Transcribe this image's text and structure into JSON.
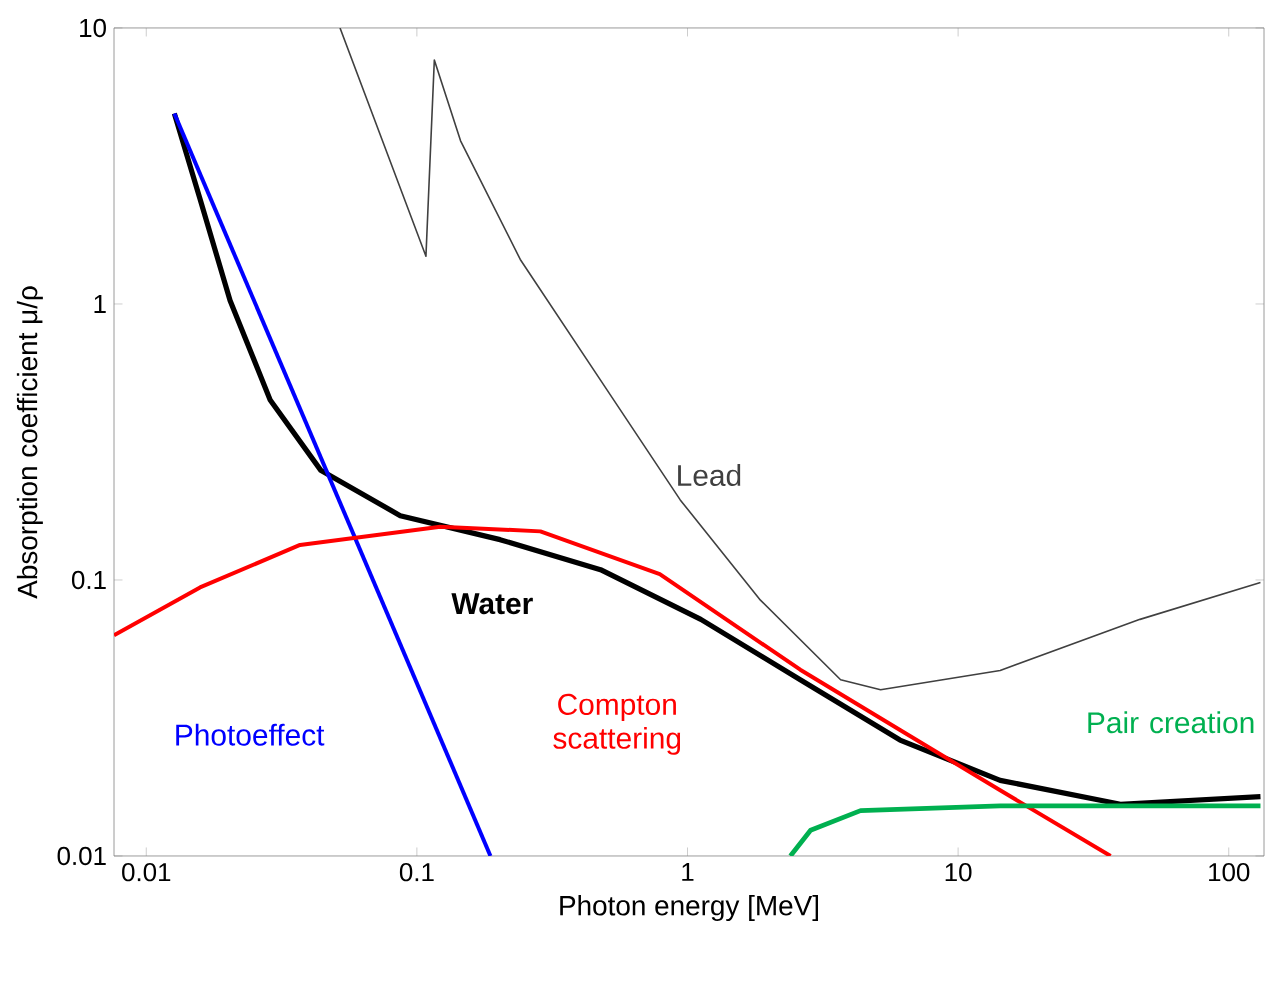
{
  "chart_data": {
    "type": "line",
    "xlabel": "Photon energy [MeV]",
    "ylabel": "Absorption coefficient μ/ρ",
    "log": "xy",
    "xlim": [
      0.0076,
      135
    ],
    "ylim": [
      0.01,
      10
    ],
    "xticks": [
      0.01,
      0.1,
      1,
      10,
      100
    ],
    "yticks": [
      0.01,
      0.1,
      1,
      10
    ],
    "grid": false,
    "legend": false,
    "marker": "none",
    "line_style": "solid",
    "series": [
      {
        "name": "Water",
        "color": "#000000",
        "x": [
          0.0127,
          0.0158,
          0.0204,
          0.0287,
          0.0441,
          0.0868,
          0.203,
          0.477,
          1.12,
          2.61,
          6.1,
          14.3,
          39.8,
          131
        ],
        "values": [
          4.9,
          2.4,
          1.03,
          0.449,
          0.25,
          0.171,
          0.14,
          0.109,
          0.072,
          0.0435,
          0.0263,
          0.0188,
          0.0154,
          0.0164
        ]
      },
      {
        "name": "Lead",
        "color": "#404040",
        "x": [
          0.052,
          0.108,
          0.116,
          0.145,
          0.241,
          0.477,
          0.94,
          1.86,
          3.68,
          5.17,
          14.3,
          47,
          131
        ],
        "values": [
          10,
          1.49,
          7.66,
          3.9,
          1.45,
          0.53,
          0.195,
          0.0845,
          0.0435,
          0.04,
          0.047,
          0.072,
          0.098
        ]
      },
      {
        "name": "Photoeffect",
        "color": "#0000ff",
        "x": [
          0.0127,
          0.187
        ],
        "values": [
          4.9,
          0.01
        ]
      },
      {
        "name": "Compton scattering",
        "color": "#ff0000",
        "x": [
          0.0076,
          0.0158,
          0.037,
          0.122,
          0.286,
          0.79,
          2.61,
          6.1,
          14.3,
          36.6
        ],
        "values": [
          0.063,
          0.094,
          0.134,
          0.156,
          0.15,
          0.105,
          0.0473,
          0.0286,
          0.0173,
          0.01
        ]
      },
      {
        "name": "Pair creation",
        "color": "#00b050",
        "x": [
          2.4,
          2.85,
          4.36,
          14.3,
          131
        ],
        "values": [
          0.01,
          0.0124,
          0.0146,
          0.0152,
          0.0152
        ]
      }
    ]
  }
}
